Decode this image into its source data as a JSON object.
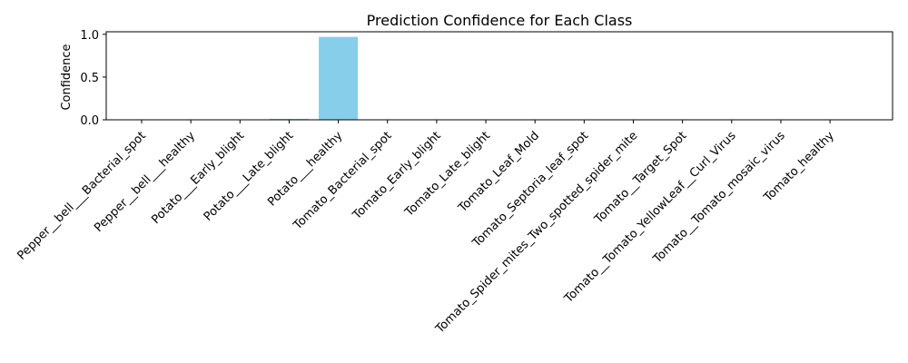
{
  "chart_data": {
    "type": "bar",
    "title": "Prediction Confidence for Each Class",
    "xlabel": "",
    "ylabel": "Confidence",
    "ylim": [
      0,
      1.03
    ],
    "yticks": [
      "0.0",
      "0.5",
      "1.0"
    ],
    "ytick_values": [
      0,
      0.5,
      1.0
    ],
    "grid": false,
    "bar_color": "#87ceeb",
    "categories": [
      "Pepper__bell___Bacterial_spot",
      "Pepper__bell___healthy",
      "Potato___Early_blight",
      "Potato___Late_blight",
      "Potato___healthy",
      "Tomato_Bacterial_spot",
      "Tomato_Early_blight",
      "Tomato_Late_blight",
      "Tomato_Leaf_Mold",
      "Tomato_Septoria_leaf_spot",
      "Tomato_Spider_mites_Two_spotted_spider_mite",
      "Tomato__Target_Spot",
      "Tomato__Tomato_YellowLeaf__Curl_Virus",
      "Tomato__Tomato_mosaic_virus",
      "Tomato_healthy"
    ],
    "values": [
      0.0,
      0.0,
      0.0,
      0.01,
      0.97,
      0.0,
      0.0,
      0.0,
      0.0,
      0.0,
      0.0,
      0.0,
      0.0,
      0.0,
      0.0
    ]
  }
}
